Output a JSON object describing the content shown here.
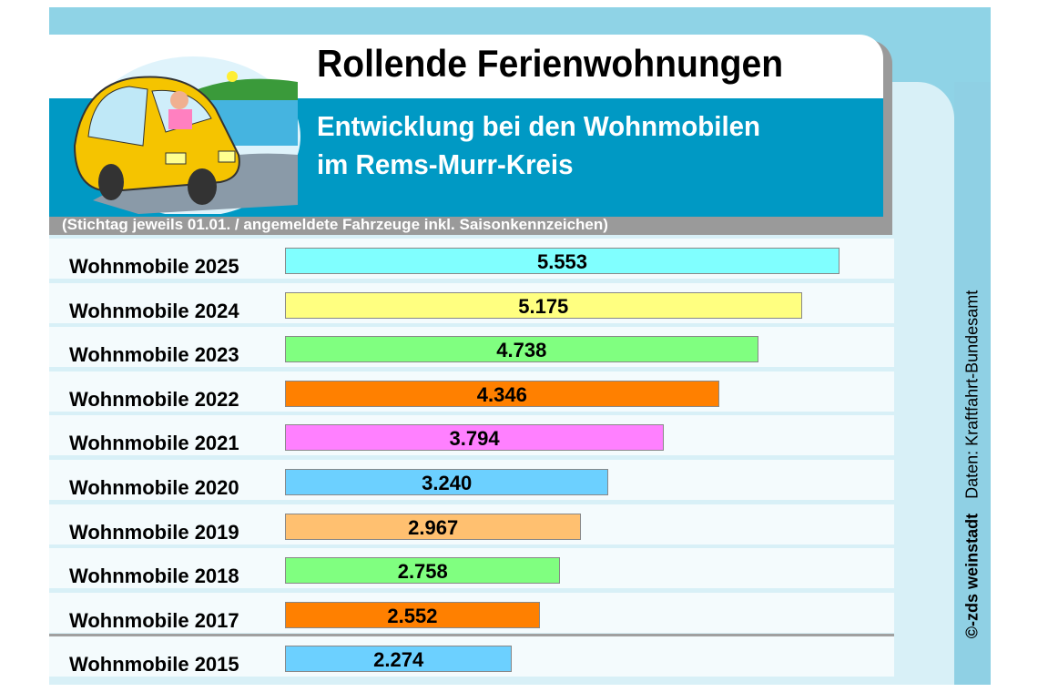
{
  "header": {
    "title": "Rollende Ferienwohnungen",
    "subtitle_line1": "Entwicklung bei den Wohnmobilen",
    "subtitle_line2": "im Rems-Murr-Kreis",
    "note": "(Stichtag jeweils 01.01.  /  angemeldete Fahrzeuge inkl. Saisonkennzeichen)"
  },
  "credit": {
    "copyright": "©-zds  weinstadt",
    "source": "Daten: Kraftfahrt-Bundesamt"
  },
  "colors": {
    "header_teal": "#0099c4",
    "background": "#8fd3e6"
  },
  "chart_data": {
    "type": "bar",
    "orientation": "horizontal",
    "categories": [
      "Wohnmobile 2025",
      "Wohnmobile 2024",
      "Wohnmobile 2023",
      "Wohnmobile 2022",
      "Wohnmobile 2021",
      "Wohnmobile 2020",
      "Wohnmobile 2019",
      "Wohnmobile 2018",
      "Wohnmobile 2017",
      "Wohnmobile 2015"
    ],
    "values": [
      5553,
      5175,
      4738,
      4346,
      3794,
      3240,
      2967,
      2758,
      2552,
      2274
    ],
    "value_labels": [
      "5.553",
      "5.175",
      "4.738",
      "4.346",
      "3.794",
      "3.240",
      "2.967",
      "2.758",
      "2.552",
      "2.274"
    ],
    "colors": [
      "#80ffff",
      "#ffff80",
      "#80ff80",
      "#ff8000",
      "#ff80ff",
      "#6cd0ff",
      "#ffc070",
      "#80ff80",
      "#ff8000",
      "#6cd0ff"
    ],
    "xlim": [
      0,
      5553
    ],
    "grid": false
  }
}
